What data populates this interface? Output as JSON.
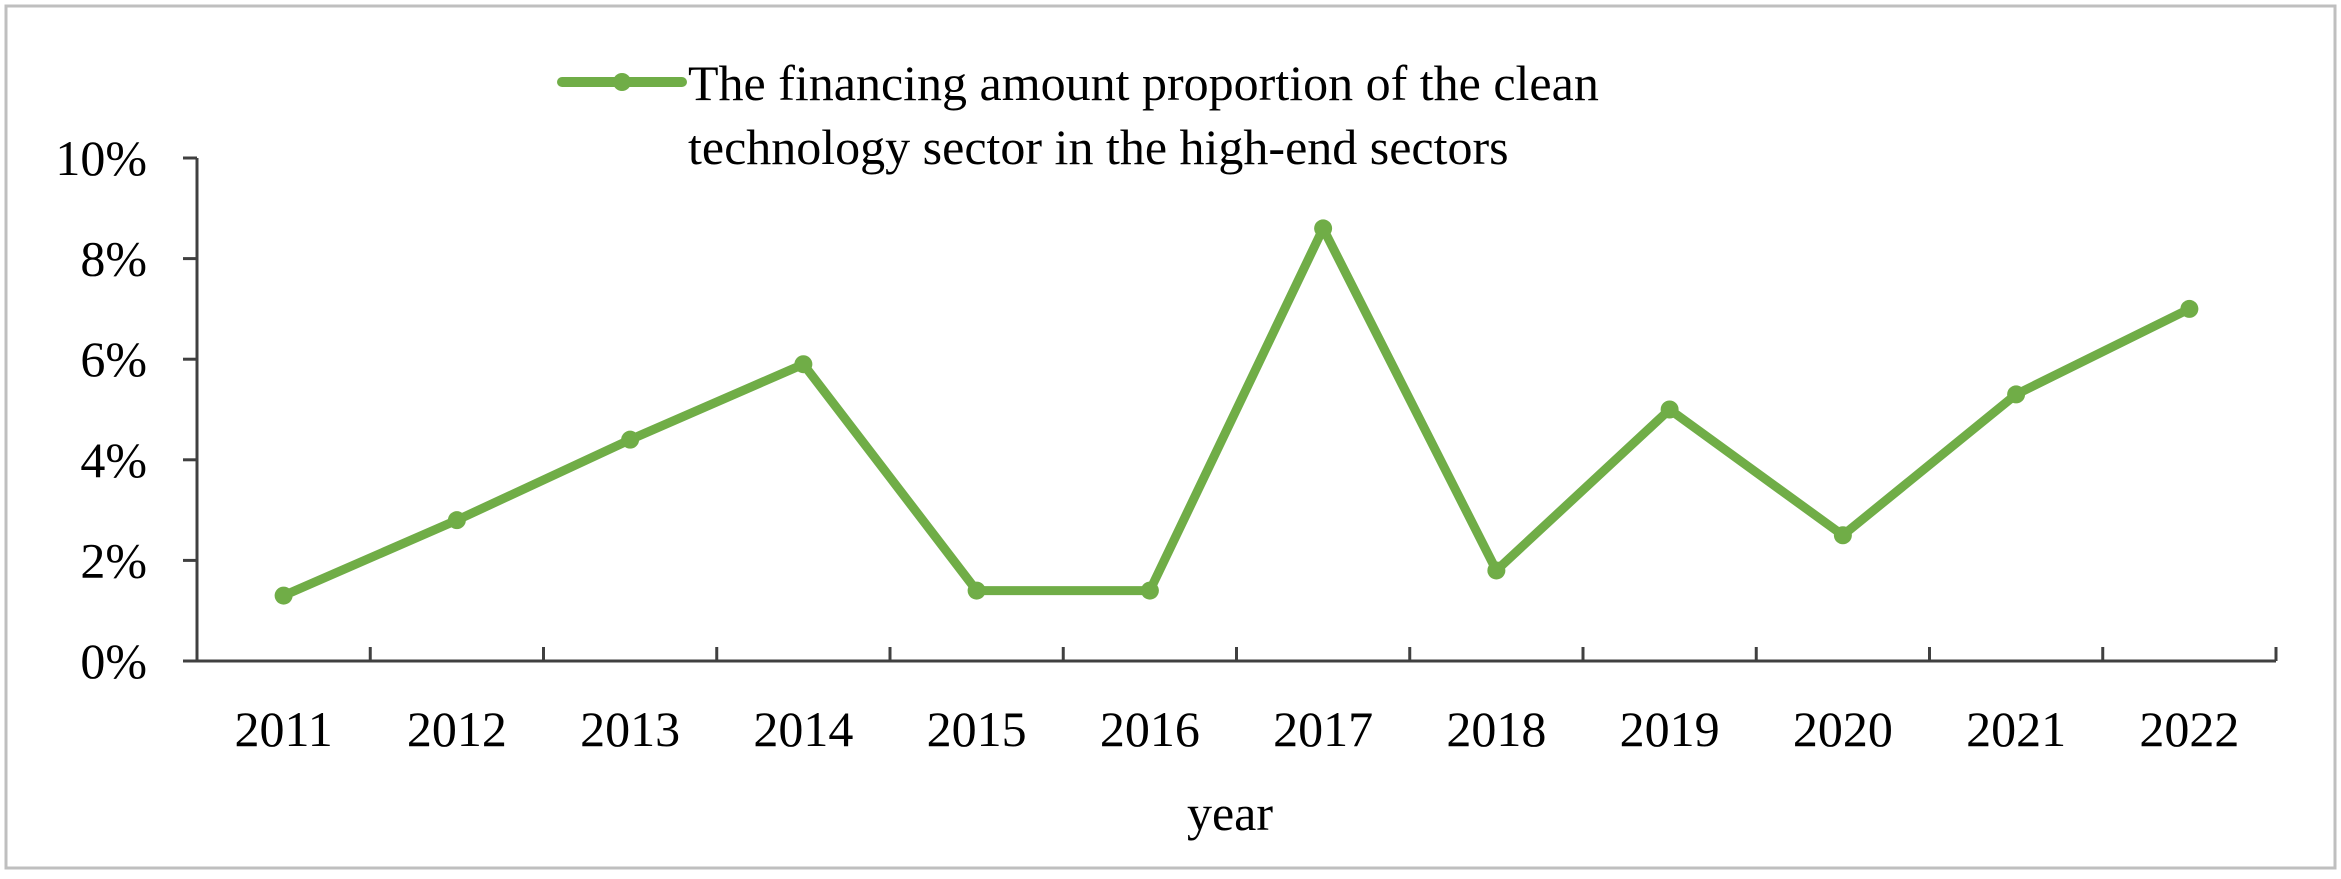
{
  "chart_data": {
    "type": "line",
    "title": "",
    "xlabel": "year",
    "ylabel": "",
    "categories": [
      "2011",
      "2012",
      "2013",
      "2014",
      "2015",
      "2016",
      "2017",
      "2018",
      "2019",
      "2020",
      "2021",
      "2022"
    ],
    "series": [
      {
        "name_lines": [
          "The financing amount proportion of the clean",
          "technology sector in the high-end sectors"
        ],
        "values": [
          1.3,
          2.8,
          4.4,
          5.9,
          1.4,
          1.4,
          8.6,
          1.8,
          5.0,
          2.5,
          5.3,
          7.0
        ],
        "color": "#70ad47"
      }
    ],
    "ylim": [
      0,
      10
    ],
    "yticks": [
      "0%",
      "2%",
      "4%",
      "6%",
      "8%",
      "10%"
    ],
    "grid": false,
    "legend_position": "top"
  }
}
